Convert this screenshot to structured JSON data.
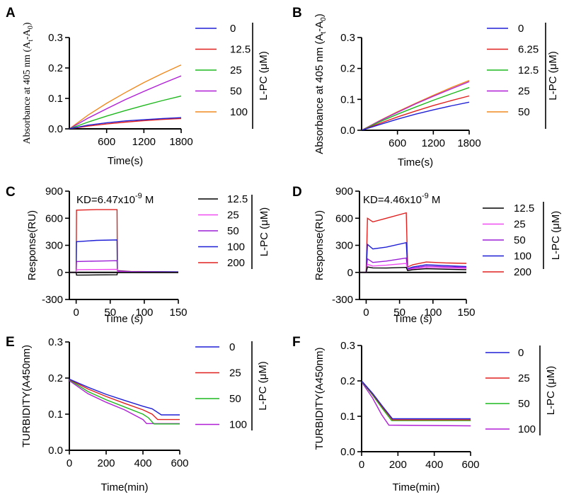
{
  "chart_data": [
    {
      "panel": "A",
      "type": "line",
      "ylabel_main": "Absorbance at 405 nm (A",
      "ylabel_sub1": "t",
      "ylabel_mid": "-A",
      "ylabel_sub2": "0",
      "ylabel_end": ")",
      "xlabel": "Time(s)",
      "xlim": [
        0,
        1800
      ],
      "ylim": [
        0,
        0.3
      ],
      "xticks": [
        "600",
        "1200",
        "1800"
      ],
      "xtick_values": [
        600,
        1200,
        1800
      ],
      "yticks": [
        "0.0",
        "0.1",
        "0.2",
        "0.3"
      ],
      "ytick_values": [
        0,
        0.1,
        0.2,
        0.3
      ],
      "legend_title": "L-PC (μM)",
      "series": [
        {
          "name": "0",
          "color": "#1f1fd6",
          "x": [
            0,
            300,
            600,
            900,
            1200,
            1500,
            1800
          ],
          "y": [
            0,
            0.012,
            0.02,
            0.026,
            0.03,
            0.034,
            0.037
          ]
        },
        {
          "name": "12.5",
          "color": "#e0201e",
          "x": [
            0,
            300,
            600,
            900,
            1200,
            1500,
            1800
          ],
          "y": [
            0,
            0.009,
            0.016,
            0.022,
            0.027,
            0.031,
            0.034
          ]
        },
        {
          "name": "25",
          "color": "#1fb81f",
          "x": [
            0,
            300,
            600,
            900,
            1200,
            1500,
            1800
          ],
          "y": [
            0,
            0.022,
            0.042,
            0.06,
            0.077,
            0.093,
            0.108
          ]
        },
        {
          "name": "50",
          "color": "#b01fd6",
          "x": [
            0,
            300,
            600,
            900,
            1200,
            1500,
            1800
          ],
          "y": [
            0,
            0.035,
            0.066,
            0.096,
            0.123,
            0.149,
            0.174
          ]
        },
        {
          "name": "100",
          "color": "#f08a1e",
          "x": [
            0,
            300,
            600,
            900,
            1200,
            1500,
            1800
          ],
          "y": [
            0,
            0.045,
            0.084,
            0.119,
            0.152,
            0.182,
            0.21
          ]
        }
      ]
    },
    {
      "panel": "B",
      "type": "line",
      "ylabel_main": "Absorbance at 405 nm (A",
      "ylabel_sub1": "t",
      "ylabel_mid": "-A",
      "ylabel_sub2": "0",
      "ylabel_end": ")",
      "xlabel": "Time(s)",
      "xlim": [
        0,
        1800
      ],
      "ylim": [
        0,
        0.3
      ],
      "xticks": [
        "600",
        "1200",
        "1800"
      ],
      "xtick_values": [
        600,
        1200,
        1800
      ],
      "yticks": [
        "0.0",
        "0.1",
        "0.2",
        "0.3"
      ],
      "ytick_values": [
        0,
        0.1,
        0.2,
        0.3
      ],
      "legend_title": "L-PC (μM)",
      "series": [
        {
          "name": "0",
          "color": "#1f1fd6",
          "x": [
            0,
            300,
            600,
            900,
            1200,
            1500,
            1800
          ],
          "y": [
            0,
            0.018,
            0.036,
            0.052,
            0.066,
            0.079,
            0.091
          ]
        },
        {
          "name": "6.25",
          "color": "#e0201e",
          "x": [
            0,
            300,
            600,
            900,
            1200,
            1500,
            1800
          ],
          "y": [
            0,
            0.022,
            0.043,
            0.062,
            0.08,
            0.096,
            0.111
          ]
        },
        {
          "name": "12.5",
          "color": "#1fb81f",
          "x": [
            0,
            300,
            600,
            900,
            1200,
            1500,
            1800
          ],
          "y": [
            0,
            0.027,
            0.052,
            0.075,
            0.097,
            0.118,
            0.138
          ]
        },
        {
          "name": "25",
          "color": "#b01fd6",
          "x": [
            0,
            300,
            600,
            900,
            1200,
            1500,
            1800
          ],
          "y": [
            0,
            0.03,
            0.058,
            0.085,
            0.11,
            0.134,
            0.157
          ]
        },
        {
          "name": "50",
          "color": "#f08a1e",
          "x": [
            0,
            300,
            600,
            900,
            1200,
            1500,
            1800
          ],
          "y": [
            0,
            0.031,
            0.06,
            0.087,
            0.113,
            0.138,
            0.161
          ]
        }
      ]
    },
    {
      "panel": "C",
      "type": "line",
      "ylabel": "Response(RU)",
      "xlabel": "Time (s)",
      "annotation_prefix": "KD=6.47x10",
      "annotation_exp": "-9",
      "annotation_suffix": " M",
      "xlim": [
        -10,
        150
      ],
      "ylim": [
        -300,
        900
      ],
      "xticks": [
        "0",
        "50",
        "100",
        "150"
      ],
      "xtick_values": [
        0,
        50,
        100,
        150
      ],
      "yticks": [
        "-300",
        "0",
        "300",
        "600",
        "900"
      ],
      "ytick_values": [
        -300,
        0,
        300,
        600,
        900
      ],
      "legend_title": "L-PC (μM)",
      "series": [
        {
          "name": "12.5",
          "color": "#000000",
          "x": [
            -10,
            0,
            0.5,
            30,
            60,
            60.5,
            80,
            150
          ],
          "y": [
            0,
            0,
            -30,
            -28,
            -26,
            0,
            0,
            0
          ]
        },
        {
          "name": "25",
          "color": "#f04df0",
          "x": [
            -10,
            0,
            0.5,
            30,
            60,
            60.5,
            80,
            150
          ],
          "y": [
            0,
            0,
            30,
            32,
            33,
            5,
            2,
            0
          ]
        },
        {
          "name": "50",
          "color": "#9b1fd6",
          "x": [
            -10,
            0,
            0.5,
            30,
            60,
            60.5,
            80,
            150
          ],
          "y": [
            0,
            0,
            120,
            125,
            130,
            10,
            5,
            0
          ]
        },
        {
          "name": "100",
          "color": "#1f1fd6",
          "x": [
            -10,
            0,
            0.5,
            30,
            60,
            60.5,
            80,
            150
          ],
          "y": [
            0,
            0,
            340,
            355,
            360,
            15,
            8,
            5
          ]
        },
        {
          "name": "200",
          "color": "#e0201e",
          "x": [
            -10,
            0,
            0.5,
            30,
            60,
            60.5,
            80,
            150
          ],
          "y": [
            0,
            0,
            690,
            695,
            695,
            20,
            10,
            5
          ]
        }
      ]
    },
    {
      "panel": "D",
      "type": "line",
      "ylabel": "Response(RU)",
      "xlabel": "Time (s)",
      "annotation_prefix": "KD=4.46x10",
      "annotation_exp": "-9",
      "annotation_suffix": " M",
      "xlim": [
        -10,
        150
      ],
      "ylim": [
        -300,
        900
      ],
      "xticks": [
        "0",
        "50",
        "100",
        "150"
      ],
      "xtick_values": [
        0,
        50,
        100,
        150
      ],
      "yticks": [
        "-300",
        "0",
        "300",
        "600",
        "900"
      ],
      "ytick_values": [
        -300,
        0,
        300,
        600,
        900
      ],
      "legend_title": "L-PC (μM)",
      "series": [
        {
          "name": "12.5",
          "color": "#000000",
          "x": [
            -10,
            0,
            2,
            10,
            30,
            60,
            62,
            70,
            90,
            120,
            150
          ],
          "y": [
            0,
            0,
            60,
            50,
            48,
            55,
            20,
            30,
            40,
            35,
            30
          ]
        },
        {
          "name": "25",
          "color": "#f04df0",
          "x": [
            -10,
            0,
            2,
            10,
            30,
            60,
            62,
            70,
            90,
            120,
            150
          ],
          "y": [
            0,
            0,
            90,
            70,
            80,
            100,
            25,
            40,
            55,
            50,
            45
          ]
        },
        {
          "name": "50",
          "color": "#9b1fd6",
          "x": [
            -10,
            0,
            2,
            10,
            30,
            60,
            62,
            70,
            90,
            120,
            150
          ],
          "y": [
            0,
            0,
            150,
            110,
            125,
            160,
            30,
            50,
            70,
            62,
            55
          ]
        },
        {
          "name": "100",
          "color": "#1f1fd6",
          "x": [
            -10,
            0,
            2,
            10,
            30,
            60,
            62,
            70,
            90,
            120,
            150
          ],
          "y": [
            0,
            0,
            310,
            260,
            280,
            330,
            40,
            60,
            85,
            75,
            65
          ]
        },
        {
          "name": "200",
          "color": "#e0201e",
          "x": [
            -10,
            0,
            2,
            10,
            30,
            60,
            62,
            70,
            90,
            120,
            150
          ],
          "y": [
            0,
            0,
            600,
            560,
            600,
            660,
            60,
            85,
            115,
            105,
            100
          ]
        }
      ]
    },
    {
      "panel": "E",
      "type": "line",
      "ylabel": "TURBIDITY(A450nm)",
      "xlabel": "Time(min)",
      "xlim": [
        0,
        600
      ],
      "ylim": [
        0,
        0.3
      ],
      "xticks": [
        "0",
        "200",
        "400",
        "600"
      ],
      "xtick_values": [
        0,
        200,
        400,
        600
      ],
      "yticks": [
        "0.0",
        "0.1",
        "0.2",
        "0.3"
      ],
      "ytick_values": [
        0,
        0.1,
        0.2,
        0.3
      ],
      "legend_title": "L-PC (μM)",
      "series": [
        {
          "name": "0",
          "color": "#1f1fd6",
          "x": [
            0,
            100,
            200,
            300,
            400,
            450,
            500,
            600
          ],
          "y": [
            0.197,
            0.175,
            0.155,
            0.138,
            0.122,
            0.115,
            0.098,
            0.098
          ]
        },
        {
          "name": "25",
          "color": "#e0201e",
          "x": [
            0,
            100,
            200,
            300,
            400,
            450,
            480,
            600
          ],
          "y": [
            0.196,
            0.17,
            0.149,
            0.13,
            0.112,
            0.1,
            0.085,
            0.085
          ]
        },
        {
          "name": "50",
          "color": "#1fb81f",
          "x": [
            0,
            100,
            200,
            300,
            400,
            430,
            460,
            600
          ],
          "y": [
            0.195,
            0.163,
            0.14,
            0.12,
            0.1,
            0.09,
            0.073,
            0.073
          ]
        },
        {
          "name": "100",
          "color": "#b01fd6",
          "x": [
            0,
            100,
            200,
            300,
            400,
            420,
            600
          ],
          "y": [
            0.193,
            0.157,
            0.133,
            0.112,
            0.085,
            0.074,
            0.074
          ]
        }
      ]
    },
    {
      "panel": "F",
      "type": "line",
      "ylabel": "TURBIDITY(A450nm)",
      "xlabel": "Time(min)",
      "xlim": [
        0,
        600
      ],
      "ylim": [
        0,
        0.3
      ],
      "xticks": [
        "0",
        "200",
        "400",
        "600"
      ],
      "xtick_values": [
        0,
        200,
        400,
        600
      ],
      "yticks": [
        "0.0",
        "0.1",
        "0.2",
        "0.3"
      ],
      "ytick_values": [
        0,
        0.1,
        0.2,
        0.3
      ],
      "legend_title": "L-PC (μM)",
      "series": [
        {
          "name": "0",
          "color": "#1f1fd6",
          "x": [
            0,
            60,
            120,
            170,
            600
          ],
          "y": [
            0.2,
            0.165,
            0.125,
            0.093,
            0.093
          ]
        },
        {
          "name": "25",
          "color": "#e0201e",
          "x": [
            0,
            60,
            120,
            170,
            600
          ],
          "y": [
            0.2,
            0.163,
            0.122,
            0.09,
            0.09
          ]
        },
        {
          "name": "50",
          "color": "#1fb81f",
          "x": [
            0,
            60,
            120,
            165,
            600
          ],
          "y": [
            0.199,
            0.16,
            0.118,
            0.088,
            0.088
          ]
        },
        {
          "name": "100",
          "color": "#b01fd6",
          "x": [
            0,
            60,
            110,
            150,
            600
          ],
          "y": [
            0.197,
            0.152,
            0.105,
            0.075,
            0.073
          ]
        }
      ]
    }
  ]
}
